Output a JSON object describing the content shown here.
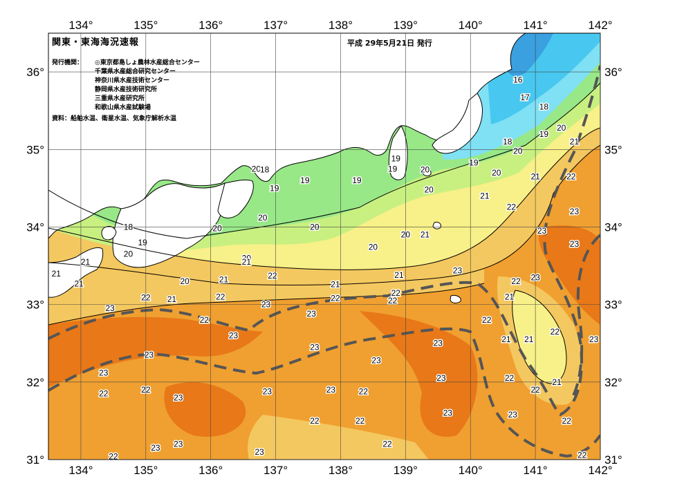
{
  "map": {
    "title": "関東・東海海況速報",
    "issue_date": "平成 29年5月21日 発行",
    "issuers_label": "発行機関：",
    "issuers": [
      "◎東京都島しょ農林水産総合センター",
      "千葉県水産総合研究センター",
      "神奈川県水産技術センター",
      "静岡県水産技術研究所",
      "三重県水産研究所",
      "和歌山県水産試験場"
    ],
    "source": "資料：船舶水温、衛星水温、気象庁解析水温",
    "longitudes": [
      "134°",
      "135°",
      "136°",
      "137°",
      "138°",
      "139°",
      "140°",
      "141°",
      "142°"
    ],
    "latitudes": [
      "36°",
      "35°",
      "34°",
      "33°",
      "32°",
      "31°"
    ],
    "colors": {
      "c16": "#3aa0e0",
      "c17": "#48c8f0",
      "c18": "#80e0f4",
      "c19": "#98e888",
      "c20": "#c8f080",
      "c21": "#f8f088",
      "c22": "#f4c860",
      "c23": "#f0a030",
      "c24": "#e87818",
      "land": "#ffffff",
      "kuroshio": "#555555"
    },
    "temp_labels": [
      {
        "t": "16",
        "lon": 140.73,
        "lat": 35.9
      },
      {
        "t": "17",
        "lon": 140.84,
        "lat": 35.67
      },
      {
        "t": "18",
        "lon": 141.13,
        "lat": 35.55
      },
      {
        "t": "20",
        "lon": 141.4,
        "lat": 35.28
      },
      {
        "t": "19",
        "lon": 141.13,
        "lat": 35.2
      },
      {
        "t": "21",
        "lon": 141.6,
        "lat": 35.1
      },
      {
        "t": "18",
        "lon": 140.57,
        "lat": 35.1
      },
      {
        "t": "20",
        "lon": 140.73,
        "lat": 34.98
      },
      {
        "t": "19",
        "lon": 140.05,
        "lat": 34.83
      },
      {
        "t": "20",
        "lon": 140.4,
        "lat": 34.7
      },
      {
        "t": "21",
        "lon": 141.0,
        "lat": 34.65
      },
      {
        "t": "22",
        "lon": 141.55,
        "lat": 34.65
      },
      {
        "t": "21",
        "lon": 140.22,
        "lat": 34.4
      },
      {
        "t": "22",
        "lon": 140.63,
        "lat": 34.26
      },
      {
        "t": "23",
        "lon": 141.6,
        "lat": 34.2
      },
      {
        "t": "23",
        "lon": 141.1,
        "lat": 33.95
      },
      {
        "t": "23",
        "lon": 141.6,
        "lat": 33.78
      },
      {
        "t": "19",
        "lon": 138.85,
        "lat": 34.88
      },
      {
        "t": "19",
        "lon": 138.8,
        "lat": 34.75
      },
      {
        "t": "20",
        "lon": 139.3,
        "lat": 34.74
      },
      {
        "t": "20",
        "lon": 139.36,
        "lat": 34.48
      },
      {
        "t": "19",
        "lon": 138.25,
        "lat": 34.6
      },
      {
        "t": "19",
        "lon": 137.45,
        "lat": 34.6
      },
      {
        "t": "20",
        "lon": 136.7,
        "lat": 34.75
      },
      {
        "t": "18",
        "lon": 136.83,
        "lat": 34.74
      },
      {
        "t": "19",
        "lon": 136.98,
        "lat": 34.5
      },
      {
        "t": "20",
        "lon": 136.8,
        "lat": 34.12
      },
      {
        "t": "20",
        "lon": 137.6,
        "lat": 34.0
      },
      {
        "t": "20",
        "lon": 136.1,
        "lat": 33.98
      },
      {
        "t": "20",
        "lon": 138.5,
        "lat": 33.74
      },
      {
        "t": "20",
        "lon": 139.0,
        "lat": 33.9
      },
      {
        "t": "21",
        "lon": 139.3,
        "lat": 33.9
      },
      {
        "t": "18",
        "lon": 134.73,
        "lat": 34.0
      },
      {
        "t": "19",
        "lon": 134.95,
        "lat": 33.8
      },
      {
        "t": "20",
        "lon": 134.73,
        "lat": 33.65
      },
      {
        "t": "20",
        "lon": 136.55,
        "lat": 33.6
      },
      {
        "t": "21",
        "lon": 134.07,
        "lat": 33.55
      },
      {
        "t": "21",
        "lon": 133.62,
        "lat": 33.4
      },
      {
        "t": "21",
        "lon": 133.97,
        "lat": 33.27
      },
      {
        "t": "20",
        "lon": 135.6,
        "lat": 33.3
      },
      {
        "t": "21",
        "lon": 136.55,
        "lat": 33.55
      },
      {
        "t": "21",
        "lon": 136.2,
        "lat": 33.32
      },
      {
        "t": "22",
        "lon": 136.95,
        "lat": 33.37
      },
      {
        "t": "21",
        "lon": 137.92,
        "lat": 33.26
      },
      {
        "t": "21",
        "lon": 138.9,
        "lat": 33.38
      },
      {
        "t": "23",
        "lon": 139.8,
        "lat": 33.44
      },
      {
        "t": "22",
        "lon": 140.7,
        "lat": 33.3
      },
      {
        "t": "23",
        "lon": 141.0,
        "lat": 33.35
      },
      {
        "t": "21",
        "lon": 140.6,
        "lat": 33.1
      },
      {
        "t": "22",
        "lon": 135.0,
        "lat": 33.09
      },
      {
        "t": "21",
        "lon": 135.4,
        "lat": 33.07
      },
      {
        "t": "22",
        "lon": 136.15,
        "lat": 33.1
      },
      {
        "t": "23",
        "lon": 136.85,
        "lat": 33.0
      },
      {
        "t": "22",
        "lon": 137.92,
        "lat": 33.08
      },
      {
        "t": "22",
        "lon": 138.85,
        "lat": 33.15
      },
      {
        "t": "22",
        "lon": 138.8,
        "lat": 33.05
      },
      {
        "t": "23",
        "lon": 134.45,
        "lat": 32.95
      },
      {
        "t": "22",
        "lon": 135.9,
        "lat": 32.8
      },
      {
        "t": "23",
        "lon": 137.55,
        "lat": 32.88
      },
      {
        "t": "22",
        "lon": 140.25,
        "lat": 32.8
      },
      {
        "t": "23",
        "lon": 136.35,
        "lat": 32.6
      },
      {
        "t": "21",
        "lon": 140.55,
        "lat": 32.55
      },
      {
        "t": "21",
        "lon": 140.9,
        "lat": 32.55
      },
      {
        "t": "22",
        "lon": 141.3,
        "lat": 32.65
      },
      {
        "t": "23",
        "lon": 141.9,
        "lat": 32.55
      },
      {
        "t": "23",
        "lon": 137.6,
        "lat": 32.45
      },
      {
        "t": "23",
        "lon": 139.5,
        "lat": 32.5
      },
      {
        "t": "23",
        "lon": 135.05,
        "lat": 32.35
      },
      {
        "t": "23",
        "lon": 138.55,
        "lat": 32.28
      },
      {
        "t": "23",
        "lon": 134.35,
        "lat": 32.12
      },
      {
        "t": "23",
        "lon": 139.55,
        "lat": 32.05
      },
      {
        "t": "22",
        "lon": 140.6,
        "lat": 32.05
      },
      {
        "t": "21",
        "lon": 141.33,
        "lat": 32.0
      },
      {
        "t": "22",
        "lon": 135.0,
        "lat": 31.9
      },
      {
        "t": "22",
        "lon": 134.35,
        "lat": 31.85
      },
      {
        "t": "23",
        "lon": 135.5,
        "lat": 31.8
      },
      {
        "t": "23",
        "lon": 136.87,
        "lat": 31.88
      },
      {
        "t": "23",
        "lon": 137.85,
        "lat": 31.9
      },
      {
        "t": "22",
        "lon": 138.35,
        "lat": 31.88
      },
      {
        "t": "22",
        "lon": 141.0,
        "lat": 31.9
      },
      {
        "t": "23",
        "lon": 139.65,
        "lat": 31.6
      },
      {
        "t": "23",
        "lon": 140.65,
        "lat": 31.58
      },
      {
        "t": "22",
        "lon": 137.6,
        "lat": 31.5
      },
      {
        "t": "22",
        "lon": 138.3,
        "lat": 31.5
      },
      {
        "t": "22",
        "lon": 141.48,
        "lat": 31.5
      },
      {
        "t": "23",
        "lon": 135.5,
        "lat": 31.2
      },
      {
        "t": "23",
        "lon": 135.15,
        "lat": 31.15
      },
      {
        "t": "22",
        "lon": 138.72,
        "lat": 31.2
      },
      {
        "t": "23",
        "lon": 136.75,
        "lat": 31.1
      },
      {
        "t": "22",
        "lon": 134.5,
        "lat": 31.04
      },
      {
        "t": "22",
        "lon": 141.72,
        "lat": 31.06
      }
    ]
  }
}
